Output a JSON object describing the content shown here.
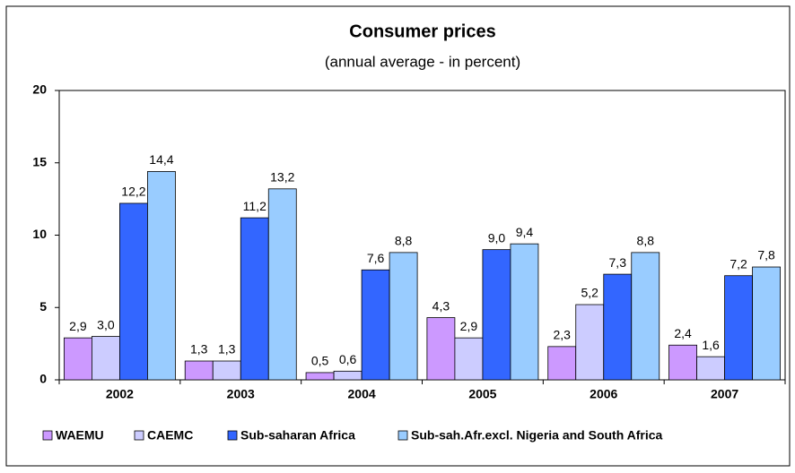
{
  "chart_data": {
    "type": "bar",
    "title": "Consumer prices",
    "subtitle": "(annual average - in percent)",
    "categories": [
      "2002",
      "2003",
      "2004",
      "2005",
      "2006",
      "2007"
    ],
    "series": [
      {
        "name": "WAEMU",
        "color": "#cc99ff",
        "values": [
          2.9,
          1.3,
          0.5,
          4.3,
          2.3,
          2.4
        ],
        "value_labels": [
          "2,9",
          "1,3",
          "0,5",
          "4,3",
          "2,3",
          "2,4"
        ]
      },
      {
        "name": "CAEMC",
        "color": "#ccccff",
        "values": [
          3.0,
          1.3,
          0.6,
          2.9,
          5.2,
          1.6
        ],
        "value_labels": [
          "3,0",
          "1,3",
          "0,6",
          "2,9",
          "5,2",
          "1,6"
        ]
      },
      {
        "name": "Sub-saharan Africa",
        "color": "#3366ff",
        "values": [
          12.2,
          11.2,
          7.6,
          9.0,
          7.3,
          7.2
        ],
        "value_labels": [
          "12,2",
          "11,2",
          "7,6",
          "9,0",
          "7,3",
          "7,2"
        ]
      },
      {
        "name": "Sub-sah.Afr.excl. Nigeria and South Africa",
        "color": "#99ccff",
        "values": [
          14.4,
          13.2,
          8.8,
          9.4,
          8.8,
          7.8
        ],
        "value_labels": [
          "14,4",
          "13,2",
          "8,8",
          "9,4",
          "8,8",
          "7,8"
        ]
      }
    ],
    "ylim": [
      0,
      20
    ],
    "yticks": [
      0,
      5,
      10,
      15,
      20
    ],
    "grid": false,
    "legend": "bottom"
  }
}
